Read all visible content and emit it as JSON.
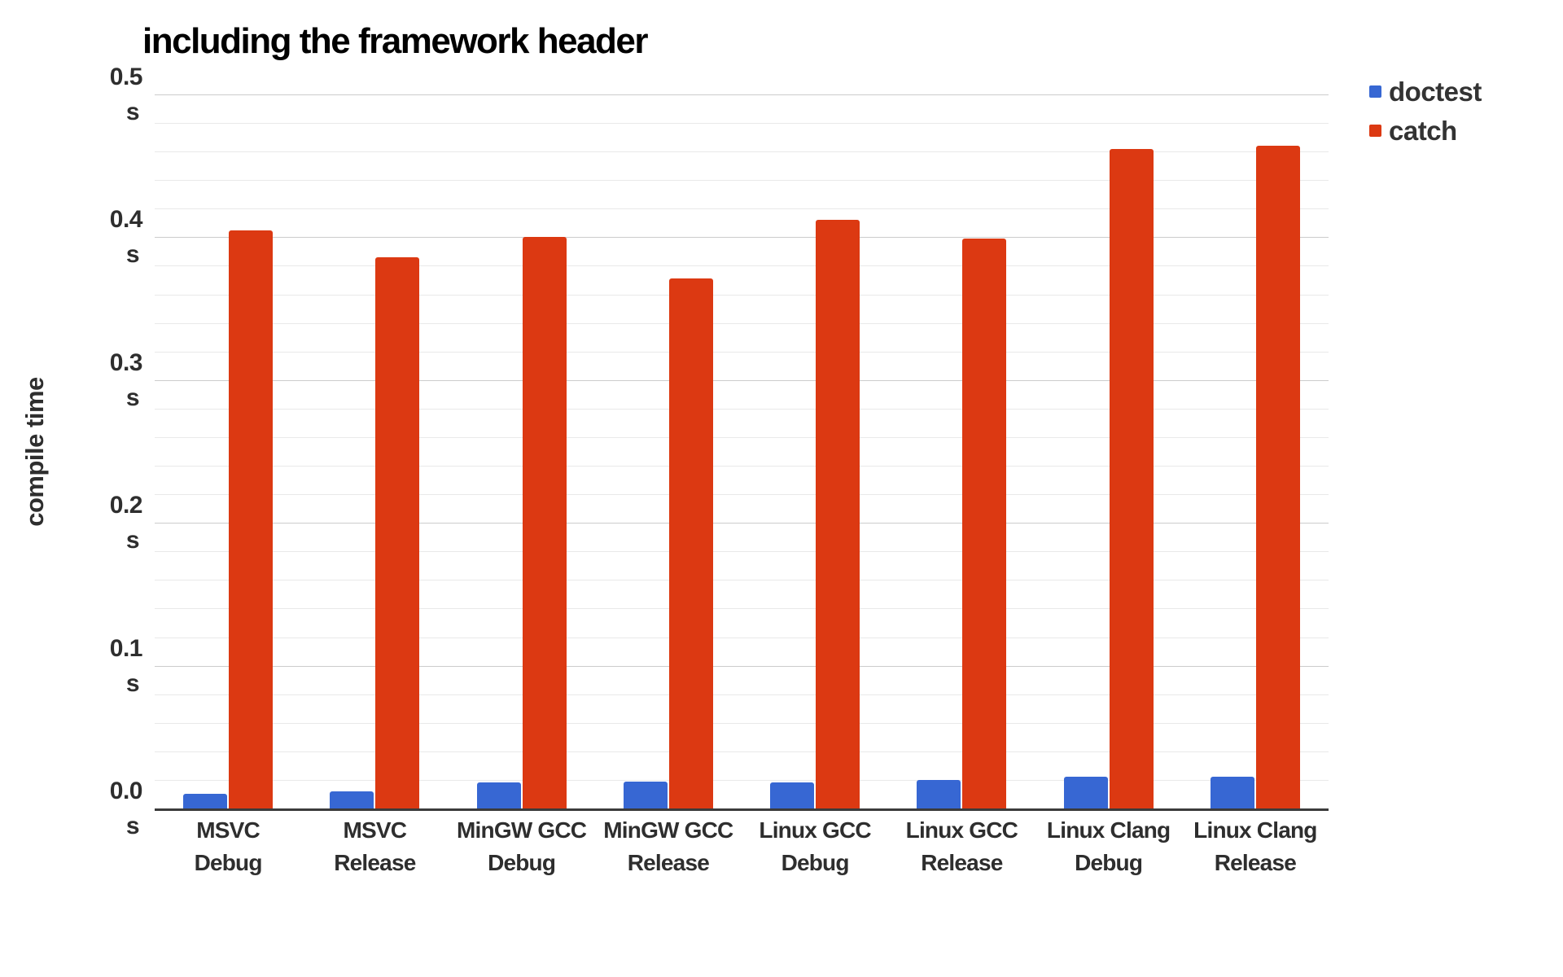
{
  "chart_data": {
    "type": "bar",
    "title": "including the framework header",
    "ylabel": "compile time",
    "xlabel": "",
    "categories": [
      "MSVC Debug",
      "MSVC Release",
      "MinGW GCC Debug",
      "MinGW GCC Release",
      "Linux GCC Debug",
      "Linux GCC Release",
      "Linux Clang Debug",
      "Linux Clang Release"
    ],
    "series": [
      {
        "name": "doctest",
        "color": "#3767d3",
        "values": [
          0.01,
          0.012,
          0.018,
          0.019,
          0.018,
          0.02,
          0.022,
          0.022
        ]
      },
      {
        "name": "catch",
        "color": "#dc3912",
        "values": [
          0.405,
          0.386,
          0.4,
          0.371,
          0.412,
          0.399,
          0.462,
          0.464
        ]
      }
    ],
    "ylim": [
      0,
      0.5
    ],
    "yticks": [
      {
        "value": 0.5,
        "label": "0.5",
        "unit": "s"
      },
      {
        "value": 0.4,
        "label": "0.4",
        "unit": "s"
      },
      {
        "value": 0.3,
        "label": "0.3",
        "unit": "s"
      },
      {
        "value": 0.2,
        "label": "0.2",
        "unit": "s"
      },
      {
        "value": 0.1,
        "label": "0.1",
        "unit": "s"
      },
      {
        "value": 0.0,
        "label": "0.0",
        "unit": "s"
      }
    ],
    "grid": {
      "visible": true,
      "major_step": 0.1,
      "minor_step": 0.02
    },
    "legend_position": "right",
    "colors": {
      "axis_text": "#2e2e2e",
      "title_text": "#000000",
      "major_grid": "#cccccc",
      "minor_grid": "#e9e9e9",
      "baseline": "#3b3b3b"
    }
  }
}
